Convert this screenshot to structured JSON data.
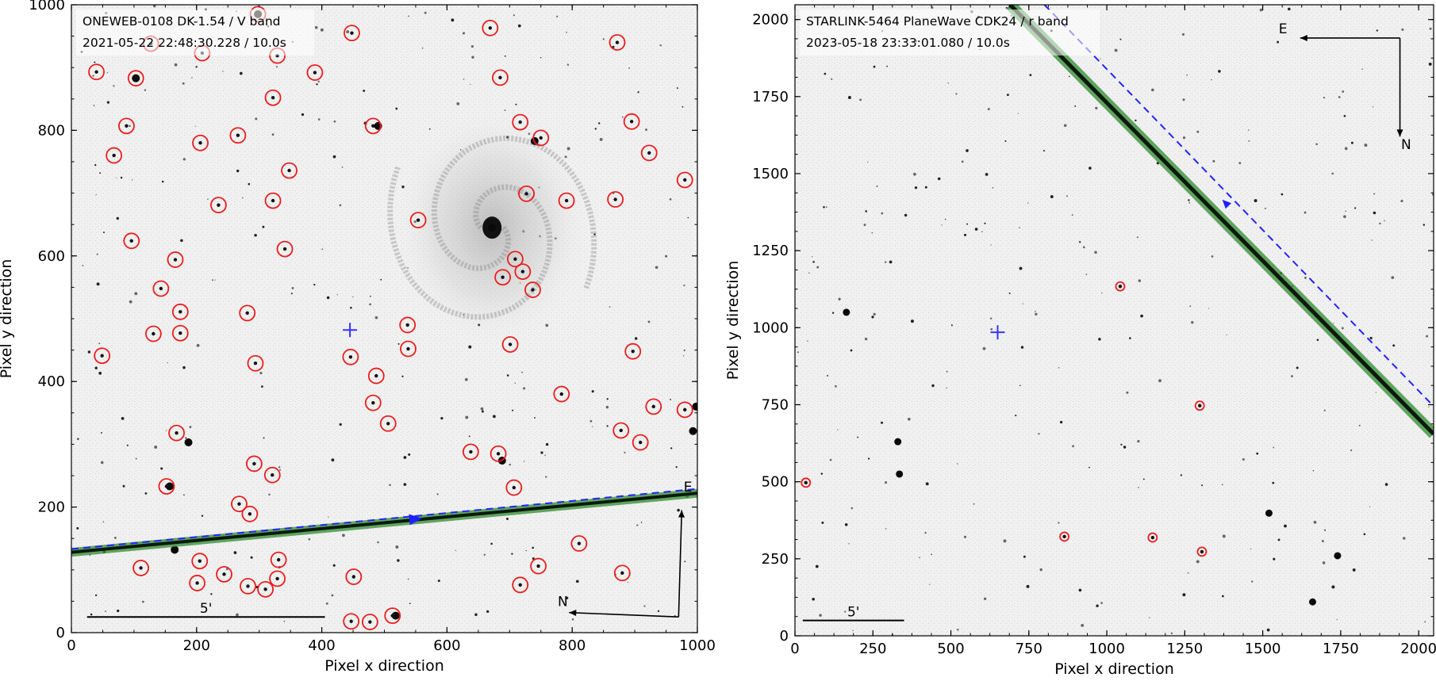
{
  "chart_data": [
    {
      "type": "scatter",
      "panel": "left",
      "title_line1": "ONEWEB-0108 DK-1.54 / V band",
      "title_line2": "2021-05-22 22:48:30.228 / 10.0s",
      "xlabel": "Pixel x direction",
      "ylabel": "Pixel y direction",
      "xlim": [
        0,
        1000
      ],
      "ylim": [
        0,
        1000
      ],
      "xticks": [
        0,
        200,
        400,
        600,
        800,
        1000
      ],
      "yticks": [
        0,
        200,
        400,
        600,
        800,
        1000
      ],
      "scalebar_label": "5'",
      "scalebar_x": [
        25,
        405
      ],
      "scalebar_y": 25,
      "compass": {
        "origin": [
          970,
          25
        ],
        "n_tip": [
          795,
          32
        ],
        "e_tip": [
          975,
          195
        ],
        "n_label": "N",
        "e_label": "E",
        "n_label_pos": [
          785,
          42
        ],
        "e_label_pos": [
          985,
          225
        ]
      },
      "center_marker": [
        445,
        482
      ],
      "trail": {
        "x": [
          0,
          1000
        ],
        "y": [
          128,
          222
        ]
      },
      "predicted_track": {
        "x": [
          0,
          1000
        ],
        "y": [
          133,
          229
        ]
      },
      "direction_arrow": {
        "x": 540,
        "y": 180
      },
      "circled_sources": [
        [
          40,
          893
        ],
        [
          103,
          883
        ],
        [
          127,
          938
        ],
        [
          209,
          923
        ],
        [
          298,
          985
        ],
        [
          448,
          955
        ],
        [
          669,
          963
        ],
        [
          872,
          940
        ],
        [
          88,
          807
        ],
        [
          68,
          760
        ],
        [
          206,
          780
        ],
        [
          266,
          792
        ],
        [
          329,
          919
        ],
        [
          389,
          892
        ],
        [
          685,
          884
        ],
        [
          322,
          852
        ],
        [
          482,
          807
        ],
        [
          717,
          813
        ],
        [
          895,
          814
        ],
        [
          750,
          788
        ],
        [
          923,
          764
        ],
        [
          980,
          721
        ],
        [
          235,
          681
        ],
        [
          322,
          688
        ],
        [
          348,
          736
        ],
        [
          727,
          699
        ],
        [
          791,
          688
        ],
        [
          869,
          690
        ],
        [
          96,
          624
        ],
        [
          166,
          594
        ],
        [
          341,
          611
        ],
        [
          554,
          657
        ],
        [
          143,
          548
        ],
        [
          174,
          511
        ],
        [
          131,
          476
        ],
        [
          174,
          477
        ],
        [
          281,
          509
        ],
        [
          537,
          490
        ],
        [
          538,
          452
        ],
        [
          709,
          595
        ],
        [
          721,
          575
        ],
        [
          689,
          566
        ],
        [
          737,
          546
        ],
        [
          701,
          459
        ],
        [
          49,
          441
        ],
        [
          446,
          439
        ],
        [
          294,
          429
        ],
        [
          487,
          409
        ],
        [
          482,
          366
        ],
        [
          506,
          333
        ],
        [
          783,
          380
        ],
        [
          897,
          448
        ],
        [
          930,
          360
        ],
        [
          980,
          355
        ],
        [
          168,
          318
        ],
        [
          638,
          288
        ],
        [
          682,
          285
        ],
        [
          707,
          231
        ],
        [
          878,
          322
        ],
        [
          909,
          303
        ],
        [
          152,
          233
        ],
        [
          292,
          269
        ],
        [
          321,
          251
        ],
        [
          268,
          205
        ],
        [
          285,
          189
        ],
        [
          205,
          114
        ],
        [
          331,
          116
        ],
        [
          111,
          103
        ],
        [
          201,
          79
        ],
        [
          244,
          93
        ],
        [
          282,
          74
        ],
        [
          310,
          69
        ],
        [
          329,
          86
        ],
        [
          451,
          89
        ],
        [
          811,
          142
        ],
        [
          746,
          106
        ],
        [
          717,
          76
        ],
        [
          880,
          95
        ],
        [
          447,
          18
        ],
        [
          477,
          17
        ],
        [
          513,
          27
        ]
      ],
      "bright_sources": [
        [
          672,
          645
        ],
        [
          740,
          783
        ],
        [
          688,
          274
        ],
        [
          103,
          883
        ],
        [
          490,
          807
        ],
        [
          187,
          303
        ],
        [
          165,
          132
        ],
        [
          518,
          27
        ],
        [
          157,
          233
        ],
        [
          298,
          985
        ],
        [
          993,
          321
        ],
        [
          998,
          360
        ]
      ]
    },
    {
      "type": "scatter",
      "panel": "right",
      "title_line1": "STARLINK-5464 PlaneWave CDK24 / r band",
      "title_line2": "2023-05-18 23:33:01.080 / 10.0s",
      "xlabel": "Pixel x direction",
      "ylabel": "Pixel y direction",
      "xlim": [
        0,
        2048
      ],
      "ylim": [
        0,
        2048
      ],
      "xticks": [
        0,
        250,
        500,
        750,
        1000,
        1250,
        1500,
        1750,
        2000
      ],
      "yticks": [
        0,
        250,
        500,
        750,
        1000,
        1250,
        1500,
        1750,
        2000
      ],
      "scalebar_label": "5'",
      "scalebar_x": [
        25,
        350
      ],
      "scalebar_y": 50,
      "compass": {
        "origin": [
          1940,
          1940
        ],
        "n_tip": [
          1940,
          1620
        ],
        "e_tip": [
          1620,
          1940
        ],
        "n_label": "N",
        "e_label": "E",
        "n_label_pos": [
          1960,
          1580
        ],
        "e_label_pos": [
          1565,
          1955
        ]
      },
      "center_marker": [
        650,
        985
      ],
      "trail": {
        "x": [
          690,
          2048
        ],
        "y": [
          2048,
          655
        ]
      },
      "predicted_track": {
        "x": [
          800,
          2048
        ],
        "y": [
          2048,
          745
        ]
      },
      "direction_arrow": {
        "x": 1390,
        "y": 1395
      },
      "circled_sources": [
        [
          35,
          497
        ],
        [
          1043,
          1134
        ],
        [
          864,
          322
        ],
        [
          1147,
          319
        ],
        [
          1298,
          747
        ],
        [
          1305,
          273
        ]
      ],
      "bright_sources": [
        [
          330,
          630
        ],
        [
          335,
          525
        ],
        [
          165,
          1050
        ],
        [
          1520,
          398
        ],
        [
          1740,
          260
        ],
        [
          1660,
          110
        ]
      ]
    }
  ]
}
